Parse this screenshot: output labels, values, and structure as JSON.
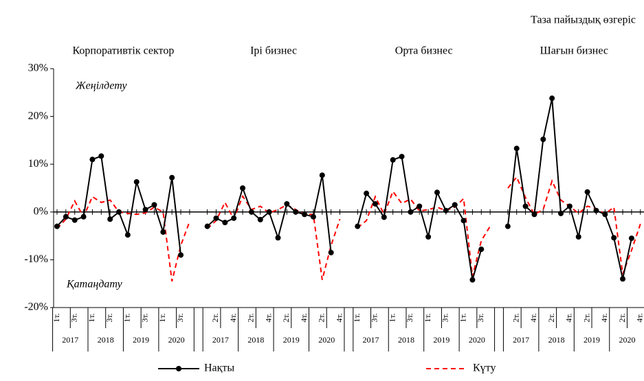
{
  "chart_data": {
    "type": "line",
    "title": "Таза пайыздық өзгеріс",
    "ylim": [
      -20,
      30
    ],
    "yticks": [
      {
        "value": -20,
        "label": "-20%"
      },
      {
        "value": -10,
        "label": "-10%"
      },
      {
        "value": 0,
        "label": "0%"
      },
      {
        "value": 10,
        "label": "10%"
      },
      {
        "value": 20,
        "label": "20%"
      },
      {
        "value": 30,
        "label": "30%"
      }
    ],
    "annotations": [
      "Жеңілдету",
      "Қатаңдату"
    ],
    "panels": [
      {
        "title": "Корпоративтік сектор",
        "categories": [
          "1т.",
          null,
          "3т.",
          null,
          "1т.",
          null,
          "3т.",
          null,
          "1т.",
          null,
          "3т.",
          null,
          "1т.",
          null,
          "3т.",
          null
        ],
        "years": [
          "2017",
          "2018",
          "2019",
          "2020"
        ],
        "series": [
          {
            "name": "Нақты",
            "color": "#000000",
            "values": [
              -3,
              -1,
              -1.7,
              -1,
              11,
              11.7,
              -1.5,
              0,
              -4.8,
              6.3,
              0.5,
              1.5,
              -4.2,
              7.2,
              -9,
              null
            ]
          },
          {
            "name": "Күту",
            "color": "#ff0000",
            "values": [
              -3.5,
              -1.5,
              2.3,
              -1,
              3.2,
              2,
              2.5,
              0,
              -0.3,
              -0.5,
              -0.2,
              1,
              0,
              -14.5,
              -7,
              -2
            ]
          }
        ]
      },
      {
        "title": "Ірі бизнес",
        "categories": [
          null,
          "2т.",
          null,
          "4т.",
          null,
          "2т.",
          null,
          "4т.",
          null,
          "2т.",
          null,
          "4т.",
          null,
          "2т.",
          null,
          "4т."
        ],
        "years": [
          "2017",
          "2018",
          "2019",
          "2020"
        ],
        "series": [
          {
            "name": "Нақты",
            "color": "#000000",
            "values": [
              -3,
              -1.3,
              -2.2,
              -1.3,
              5,
              0,
              -1.6,
              0,
              -5.4,
              1.7,
              0,
              -0.5,
              -1,
              7.7,
              -8.5,
              null
            ]
          },
          {
            "name": "Күту",
            "color": "#ff0000",
            "values": [
              -3.5,
              -1.8,
              2,
              -1.5,
              3.3,
              0.5,
              1.2,
              -0.2,
              0.5,
              1.5,
              0.5,
              -0.5,
              -0.5,
              -14.2,
              -7,
              -1.5
            ]
          }
        ]
      },
      {
        "title": "Орта бизнес",
        "categories": [
          "1т.",
          null,
          "3т.",
          null,
          "1т.",
          null,
          "3т.",
          null,
          "1т.",
          null,
          "3т.",
          null,
          "1т.",
          null,
          "3т.",
          null
        ],
        "years": [
          "2017",
          "2018",
          "2019",
          "2020"
        ],
        "series": [
          {
            "name": "Нақты",
            "color": "#000000",
            "values": [
              -3,
              3.9,
              1.7,
              -1.1,
              10.9,
              11.6,
              0,
              1.2,
              -5.2,
              4.1,
              0.3,
              1.5,
              -1.8,
              -14.2,
              -7.8,
              null
            ]
          },
          {
            "name": "Күту",
            "color": "#ff0000",
            "values": [
              -3.3,
              -1.8,
              3.2,
              -0.5,
              4.3,
              1.8,
              2.7,
              0.2,
              0.5,
              1,
              0.3,
              1,
              2.8,
              -13.5,
              -6,
              -3
            ]
          }
        ]
      },
      {
        "title": "Шағын бизнес",
        "categories": [
          null,
          "2т.",
          null,
          "4т.",
          null,
          "2т.",
          null,
          "4т.",
          null,
          "2т.",
          null,
          "4т.",
          null,
          "2т.",
          null,
          "4т."
        ],
        "years": [
          "2017",
          "2018",
          "2019",
          "2020"
        ],
        "series": [
          {
            "name": "Нақты",
            "color": "#000000",
            "values": [
              -3,
              13.3,
              1.2,
              -0.5,
              15.2,
              23.8,
              -0.3,
              1.2,
              -5.2,
              4.2,
              0.3,
              -0.5,
              -5.4,
              -14,
              -5.5,
              null
            ]
          },
          {
            "name": "Күту",
            "color": "#ff0000",
            "values": [
              5,
              7.3,
              3,
              -0.5,
              0.5,
              6.5,
              2.5,
              1.2,
              -0.3,
              1.2,
              0.7,
              -0.4,
              1,
              -13,
              -8,
              -2.5
            ]
          }
        ]
      }
    ]
  }
}
